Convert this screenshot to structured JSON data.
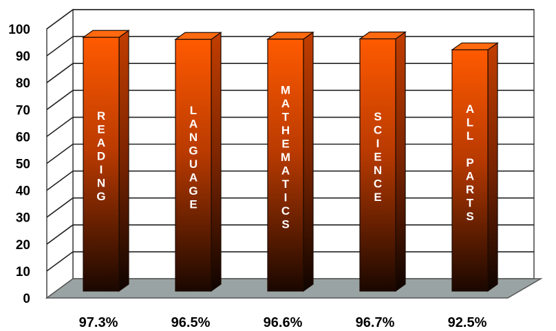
{
  "chart_data": {
    "type": "bar",
    "categories": [
      "READING",
      "LANGUAGE",
      "MATHEMATICS",
      "SCIENCE",
      "ALL PARTS"
    ],
    "values": [
      97.3,
      96.5,
      96.6,
      96.7,
      92.5
    ],
    "value_labels": [
      "97.3%",
      "96.5%",
      "96.6%",
      "96.7%",
      "92.5%"
    ],
    "ylim": [
      0,
      100
    ],
    "yticks": [
      0,
      10,
      20,
      30,
      40,
      50,
      60,
      70,
      80,
      90,
      100
    ],
    "grid": true,
    "bar_style": "3d-gradient",
    "colors": {
      "bar_top": "#ff5a00",
      "bar_bottom": "#1a0700",
      "bar_side": "#c23e00",
      "floor": "#9aa3a3"
    }
  }
}
